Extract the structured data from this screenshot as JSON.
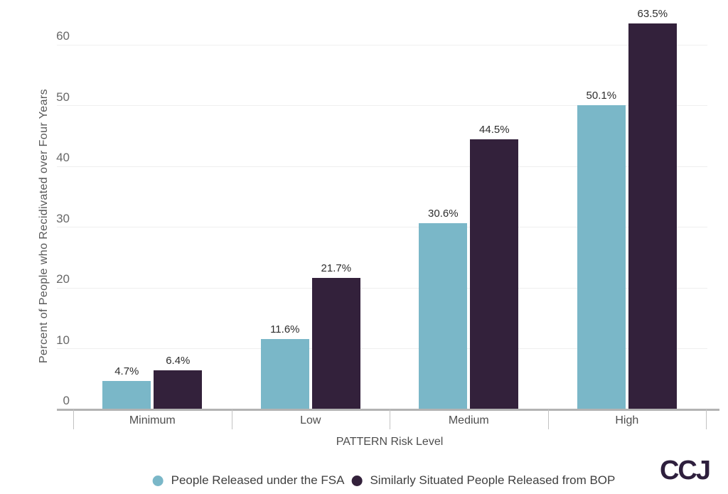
{
  "chart_data": {
    "type": "bar",
    "title": "",
    "categories": [
      "Minimum",
      "Low",
      "Medium",
      "High"
    ],
    "series": [
      {
        "name": "People Released under the FSA",
        "short": "fsa",
        "color": "#7ab7c8",
        "values": [
          4.7,
          11.6,
          30.6,
          50.1
        ]
      },
      {
        "name": "Similarly Situated People Released from BOP",
        "short": "bop",
        "color": "#33213b",
        "values": [
          6.4,
          21.7,
          44.5,
          63.5
        ]
      }
    ],
    "xlabel": "PATTERN Risk Level",
    "ylabel": "Percent of People who Recidivated over Four Years",
    "yticks": [
      0,
      10,
      20,
      30,
      40,
      50,
      60
    ],
    "ylim": [
      0,
      65
    ],
    "grid": true,
    "legend_position": "bottom",
    "value_label_suffix": "%",
    "value_label_decimals": 1
  },
  "branding": {
    "logo_text": "CCJ"
  },
  "colors": {
    "background": "#ffffff",
    "gridline": "#efefef",
    "axis_line": "#b3b3b3",
    "tick_text": "#686868",
    "label_text": "#2d2d2d",
    "logo": "#2e1f3d"
  }
}
